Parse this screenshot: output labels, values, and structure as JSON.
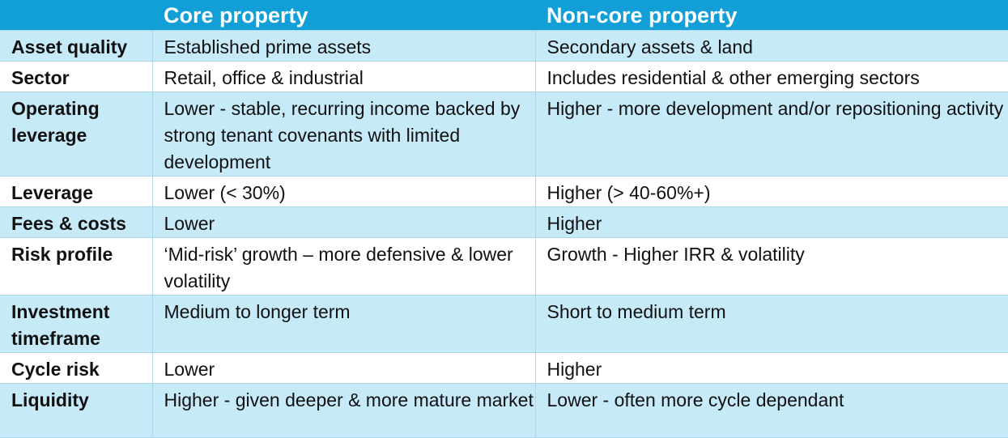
{
  "table": {
    "headers": [
      "",
      "Core property",
      "Non-core property"
    ],
    "rows": [
      {
        "label": "Asset quality",
        "core": "Established prime assets",
        "noncore": "Secondary assets & land"
      },
      {
        "label": "Sector",
        "core": "Retail, office & industrial",
        "noncore": "Includes residential & other emerging sectors"
      },
      {
        "label": "Operating leverage",
        "core": "Lower - stable, recurring income backed by strong tenant covenants with limited development",
        "noncore": "Higher - more development and/or repositioning activity"
      },
      {
        "label": "Leverage",
        "core": "Lower (< 30%)",
        "noncore": "Higher (> 40-60%+)"
      },
      {
        "label": "Fees & costs",
        "core": "Lower",
        "noncore": "Higher"
      },
      {
        "label": "Risk profile",
        "core": "‘Mid-risk’ growth – more defensive & lower volatility",
        "noncore": "Growth - Higher IRR & volatility"
      },
      {
        "label": "Investment timeframe",
        "core": "Medium to longer term",
        "noncore": "Short to medium term"
      },
      {
        "label": "Cycle risk",
        "core": "Lower",
        "noncore": "Higher"
      },
      {
        "label": "Liquidity",
        "core": "Higher - given deeper & more mature market",
        "noncore": "Lower - often more cycle dependant"
      }
    ]
  },
  "colors": {
    "header_bg": "#129fd7",
    "header_text": "#ffffff",
    "row_shade": "#c7eaf9",
    "row_plain": "#ffffff",
    "grid_line": "#a9d8ee"
  }
}
